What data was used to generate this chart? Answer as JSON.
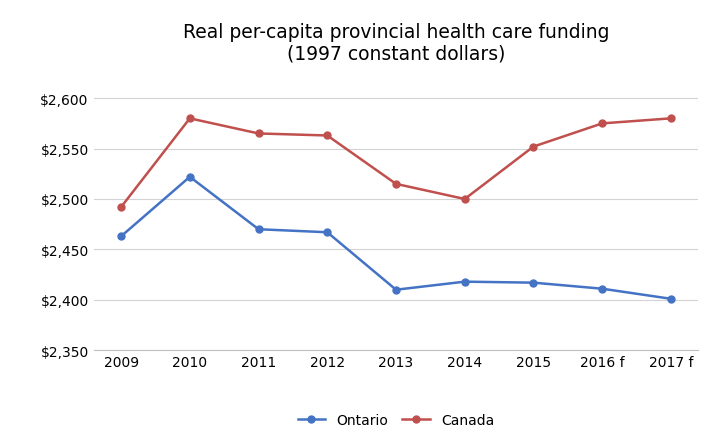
{
  "title_line1": "Real per-capita provincial health care funding",
  "title_line2": "(1997 constant dollars)",
  "x_labels": [
    "2009",
    "2010",
    "2011",
    "2012",
    "2013",
    "2014",
    "2015",
    "2016 f",
    "2017 f"
  ],
  "ontario_values": [
    2463,
    2522,
    2470,
    2467,
    2410,
    2418,
    2417,
    2411,
    2401
  ],
  "canada_values": [
    2492,
    2580,
    2565,
    2563,
    2515,
    2500,
    2552,
    2575,
    2580
  ],
  "ontario_color": "#4472C4",
  "canada_color": "#C0504D",
  "ylim_min": 2350,
  "ylim_max": 2620,
  "yticks": [
    2350,
    2400,
    2450,
    2500,
    2550,
    2600
  ],
  "legend_labels": [
    "Ontario",
    "Canada"
  ],
  "background_color": "#ffffff",
  "grid_color": "#d3d3d3",
  "marker": "o",
  "linewidth": 1.8,
  "markersize": 5,
  "title_fontsize": 13.5,
  "tick_fontsize": 10,
  "legend_fontsize": 10
}
